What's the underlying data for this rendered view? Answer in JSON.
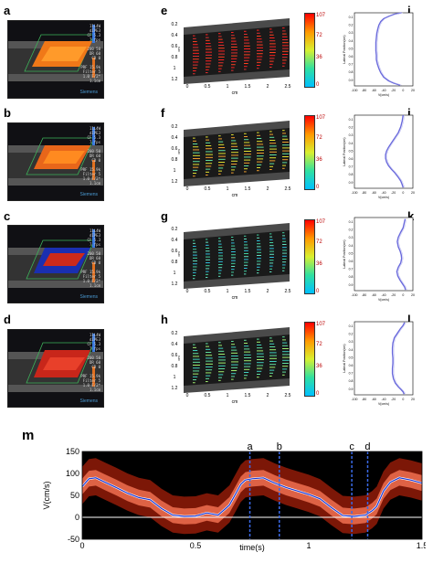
{
  "panel_labels": {
    "a": "a",
    "b": "b",
    "c": "c",
    "d": "d",
    "e": "e",
    "f": "f",
    "g": "g",
    "h": "h",
    "i": "i",
    "j": "j",
    "k": "k",
    "l": "l",
    "m": "m"
  },
  "us_settings": [
    {
      "lines": [
        "11L4W",
        "dIPE3",
        "CF 5.3",
        "7 fps",
        "",
        "200 50",
        "DR 60",
        "CD 0",
        "",
        "PRF 15.9k",
        "Filter 5",
        "1.0 F/2*",
        "1.1cm"
      ]
    },
    {
      "lines": [
        "11L4W",
        "dIPE3",
        "CF 5.3",
        "7 fps",
        "",
        "200 50",
        "DR 60",
        "CD 0",
        "",
        "PRF 15.9k",
        "Filter 5",
        "1.0 F/2*",
        "1.1cm"
      ]
    },
    {
      "lines": [
        "11L4W",
        "dIPE3",
        "CF 5.3",
        "7 fps",
        "",
        "200 50",
        "DR 60",
        "CD 0",
        "",
        "PRF 15.9k",
        "Filter 5",
        "1.0 F/2*",
        "1.1cm"
      ]
    },
    {
      "lines": [
        "11L4W",
        "dIPE3",
        "CF 5.3",
        "7 fps",
        "",
        "200 50",
        "DR 60",
        "CD 0",
        "",
        "PRF 15.9k",
        "Filter 5",
        "1.0 F/2*",
        "1.1cm"
      ]
    }
  ],
  "us_logo": "Siemens",
  "vector_axes": {
    "y_ticks": [
      "0.2",
      "0.4",
      "0.6",
      "0.8",
      "1",
      "1.2"
    ],
    "x_ticks": [
      "0",
      "0.5",
      "1",
      "1.5",
      "2",
      "2.5"
    ],
    "x_unit": "cm",
    "y_unit": "cm"
  },
  "colorbar_ticks": [
    "107",
    "72",
    "36",
    "0"
  ],
  "profile_axes": {
    "x_ticks": [
      "-100",
      "-80",
      "-60",
      "-40",
      "-20",
      "0",
      "20"
    ],
    "y_ticks": [
      "0.1",
      "0.2",
      "0.3",
      "0.4",
      "0.5",
      "0.6",
      "0.7",
      "0.8",
      "0.9"
    ],
    "xlabel": "V(cm/s)",
    "ylabel": "Lateral Position(cm)"
  },
  "colors": {
    "profile": "#6a6adc",
    "spectral_mean": "#1a3ad8",
    "marker": "#3a6ae8",
    "colorbar": [
      "#ff0000",
      "#ff9900",
      "#d8f030",
      "#30e0a0",
      "#00c0ff"
    ]
  },
  "chart_data": [
    {
      "type": "line",
      "title": "",
      "panel": "i",
      "xlabel": "V(cm/s)",
      "ylabel": "Lateral Position(cm)",
      "xlim": [
        -100,
        20
      ],
      "ylim": [
        0,
        1
      ],
      "series": [
        {
          "name": "",
          "x": [
            -3,
            -18,
            -30,
            -40,
            -46,
            -50,
            -52,
            -54,
            -55,
            -56,
            -56,
            -56,
            -55,
            -55,
            -53,
            -50,
            -46,
            -40,
            -30,
            -20,
            -6
          ],
          "y": [
            0.0,
            0.02,
            0.05,
            0.08,
            0.12,
            0.17,
            0.22,
            0.28,
            0.34,
            0.4,
            0.46,
            0.52,
            0.58,
            0.64,
            0.7,
            0.76,
            0.82,
            0.88,
            0.93,
            0.96,
            0.99
          ]
        }
      ]
    },
    {
      "type": "line",
      "title": "",
      "panel": "j",
      "xlabel": "V(cm/s)",
      "ylabel": "Lateral Position(cm)",
      "xlim": [
        -100,
        20
      ],
      "ylim": [
        0,
        1
      ],
      "series": [
        {
          "name": "",
          "x": [
            0,
            -2,
            -5,
            -10,
            -17,
            -24,
            -30,
            -34,
            -36,
            -36,
            -34,
            -30,
            -24,
            -17,
            -10,
            -5,
            -2,
            0
          ],
          "y": [
            0.0,
            0.08,
            0.16,
            0.24,
            0.31,
            0.38,
            0.44,
            0.49,
            0.54,
            0.59,
            0.64,
            0.69,
            0.74,
            0.79,
            0.85,
            0.9,
            0.95,
            0.99
          ]
        }
      ]
    },
    {
      "type": "line",
      "title": "",
      "panel": "k",
      "xlabel": "V(cm/s)",
      "ylabel": "Lateral Position(cm)",
      "xlim": [
        -100,
        20
      ],
      "ylim": [
        0,
        1
      ],
      "series": [
        {
          "name": "",
          "x": [
            4,
            2,
            0,
            -5,
            -10,
            -12,
            -10,
            -6,
            -4,
            -3,
            -5,
            -10,
            -13,
            -11,
            -6,
            -1,
            3,
            5
          ],
          "y": [
            0.02,
            0.08,
            0.14,
            0.2,
            0.27,
            0.33,
            0.4,
            0.46,
            0.51,
            0.56,
            0.62,
            0.68,
            0.74,
            0.8,
            0.86,
            0.91,
            0.95,
            0.99
          ]
        }
      ]
    },
    {
      "type": "line",
      "title": "",
      "panel": "l",
      "xlabel": "V(cm/s)",
      "ylabel": "Lateral Position(cm)",
      "xlim": [
        -100,
        20
      ],
      "ylim": [
        0,
        1
      ],
      "series": [
        {
          "name": "",
          "x": [
            3,
            0,
            -6,
            -12,
            -18,
            -21,
            -22,
            -22,
            -21,
            -21,
            -22,
            -22,
            -20,
            -16,
            -10,
            -4,
            0,
            2
          ],
          "y": [
            0.01,
            0.05,
            0.1,
            0.16,
            0.22,
            0.29,
            0.36,
            0.43,
            0.5,
            0.57,
            0.64,
            0.71,
            0.78,
            0.84,
            0.89,
            0.93,
            0.96,
            0.99
          ]
        }
      ]
    },
    {
      "type": "line",
      "title": "",
      "panel": "m",
      "xlabel": "time(s)",
      "ylabel": "V(cm/s)",
      "xlim": [
        0,
        1.5
      ],
      "ylim": [
        -50,
        150
      ],
      "x_ticks": [
        "0",
        "0.5",
        "1",
        "1.5"
      ],
      "y_ticks": [
        "-50",
        "0",
        "50",
        "100",
        "150"
      ],
      "series": [
        {
          "name": "",
          "x": [
            0,
            0.03,
            0.06,
            0.1,
            0.15,
            0.2,
            0.25,
            0.3,
            0.35,
            0.4,
            0.45,
            0.5,
            0.55,
            0.6,
            0.65,
            0.7,
            0.72,
            0.75,
            0.8,
            0.85,
            0.9,
            0.95,
            1.0,
            1.05,
            1.1,
            1.15,
            1.2,
            1.25,
            1.28,
            1.3,
            1.33,
            1.36,
            1.4,
            1.45,
            1.5
          ],
          "y": [
            70,
            88,
            90,
            80,
            68,
            55,
            45,
            40,
            20,
            5,
            2,
            3,
            10,
            5,
            28,
            75,
            85,
            88,
            90,
            78,
            68,
            60,
            52,
            42,
            22,
            4,
            2,
            5,
            15,
            25,
            60,
            80,
            90,
            85,
            78
          ]
        }
      ],
      "markers": [
        {
          "label": "a",
          "x": 0.74
        },
        {
          "label": "b",
          "x": 0.87
        },
        {
          "label": "c",
          "x": 1.19
        },
        {
          "label": "d",
          "x": 1.26
        }
      ]
    }
  ]
}
